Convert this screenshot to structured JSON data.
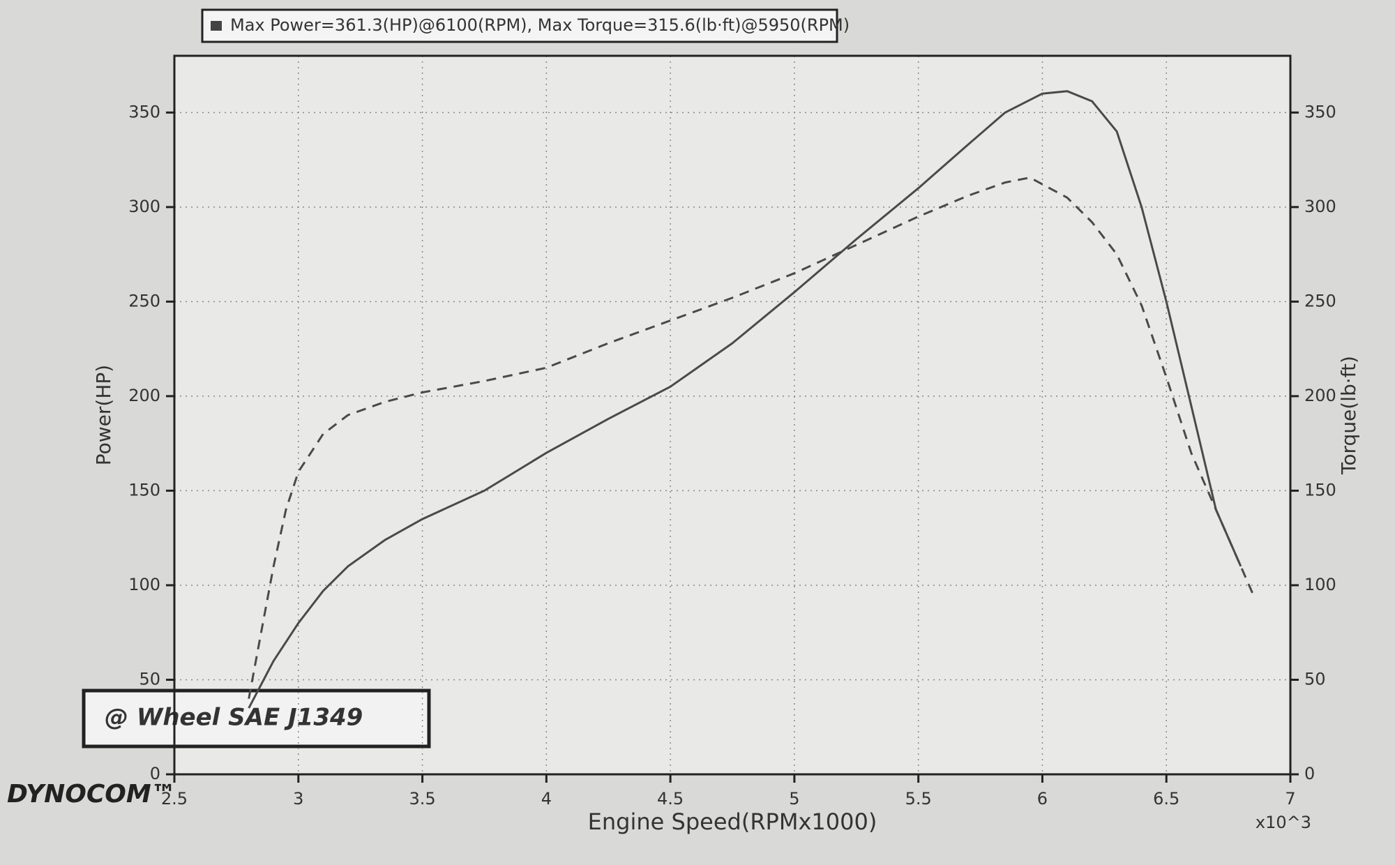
{
  "chart_data": {
    "type": "line",
    "legend_text": "Max Power=361.3(HP)@6100(RPM), Max Torque=315.6(lb·ft)@5950(RPM)",
    "annotation": "@ Wheel SAE J1349",
    "logo": "DYNOCOM™",
    "x_label": "Engine Speed(RPMx1000)",
    "x_multiplier": "x10^3",
    "y_label": "Power(HP)",
    "y2_label": "Torque(lb·ft)",
    "xlim": [
      2.5,
      7
    ],
    "xticks": [
      2.5,
      3,
      3.5,
      4,
      4.5,
      5,
      5.5,
      6,
      6.5,
      7
    ],
    "ylim": [
      0,
      380
    ],
    "yticks": [
      0,
      50,
      100,
      150,
      200,
      250,
      300,
      350
    ],
    "y2lim": [
      0,
      380
    ],
    "y2ticks": [
      0,
      50,
      100,
      150,
      200,
      250,
      300,
      350
    ],
    "grid": true,
    "series": [
      {
        "color": "#4a4a4a",
        "dash": false,
        "x": [
          2.8,
          2.9,
          3.0,
          3.1,
          3.2,
          3.35,
          3.5,
          3.75,
          4.0,
          4.25,
          4.5,
          4.75,
          5.0,
          5.25,
          5.5,
          5.7,
          5.85,
          6.0,
          6.1,
          6.2,
          6.3,
          6.4,
          6.5,
          6.6,
          6.7,
          6.8
        ],
        "values": [
          35,
          60,
          80,
          97,
          110,
          124,
          135,
          150,
          170,
          188,
          205,
          228,
          255,
          283,
          310,
          333,
          350,
          360,
          361.3,
          356,
          340,
          300,
          250,
          195,
          140,
          110
        ]
      },
      {
        "color": "#4a4a4a",
        "dash": true,
        "axis": "y2",
        "x": [
          2.8,
          2.85,
          2.9,
          2.95,
          3.0,
          3.1,
          3.2,
          3.35,
          3.5,
          3.75,
          4.0,
          4.25,
          4.5,
          4.75,
          5.0,
          5.25,
          5.5,
          5.7,
          5.85,
          5.95,
          6.1,
          6.2,
          6.3,
          6.4,
          6.5,
          6.6,
          6.7,
          6.85
        ],
        "values": [
          40,
          75,
          110,
          140,
          160,
          180,
          190,
          197,
          202,
          208,
          215,
          228,
          240,
          252,
          265,
          280,
          295,
          306,
          313,
          315.6,
          305,
          292,
          275,
          248,
          210,
          170,
          140,
          95
        ]
      }
    ]
  }
}
